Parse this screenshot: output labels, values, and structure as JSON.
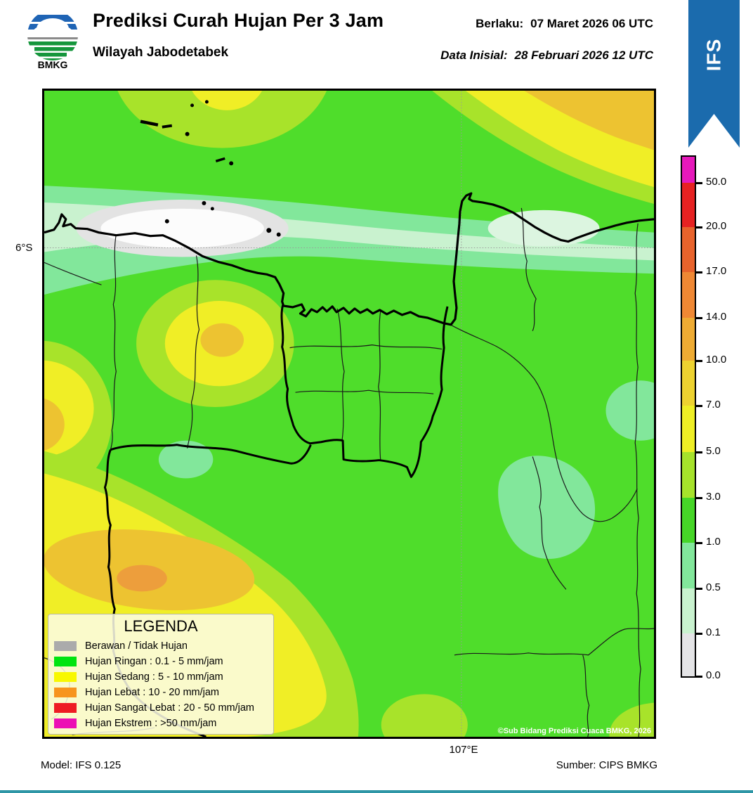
{
  "header": {
    "title": "Prediksi Curah Hujan Per 3 Jam",
    "subtitle": "Wilayah Jabodetabek",
    "valid_label": "Berlaku:",
    "valid_value": "07 Maret 2026 06 UTC",
    "init_label": "Data Inisial:",
    "init_value": "28 Februari 2026 12 UTC",
    "logo_text": "BMKG"
  },
  "banner": {
    "label": "IFS",
    "color": "#1B6BAD"
  },
  "map": {
    "lat_label": "6°S",
    "lon_label": "107°E",
    "copyright": "©Sub Bidang Prediksi Cuaca BMKG, 2026"
  },
  "legend": {
    "title": "LEGENDA",
    "items": [
      {
        "color": "#ABABAB",
        "label": "Berawan / Tidak Hujan"
      },
      {
        "color": "#00E410",
        "label": "Hujan Ringan : 0.1 - 5 mm/jam"
      },
      {
        "color": "#F8F800",
        "label": "Hujan Sedang : 5 - 10 mm/jam"
      },
      {
        "color": "#F7941E",
        "label": "Hujan Lebat : 10 - 20 mm/jam"
      },
      {
        "color": "#EE1C23",
        "label": "Hujan Sangat Lebat : 20 - 50 mm/jam"
      },
      {
        "color": "#EC0EB4",
        "label": "Hujan Ekstrem : >50 mm/jam"
      }
    ]
  },
  "colorbar": {
    "values": [
      "50.0",
      "20.0",
      "17.0",
      "14.0",
      "10.0",
      "7.0",
      "5.0",
      "3.0",
      "1.0",
      "0.5",
      "0.1",
      "0.0"
    ],
    "colors": [
      "#E619BB",
      "#E62222",
      "#E8632C",
      "#EF8834",
      "#EEAB33",
      "#EDD230",
      "#EEEE25",
      "#A6E22B",
      "#46D627",
      "#82E79B",
      "#C9F2CF",
      "#E4E4E6"
    ]
  },
  "footer": {
    "model": "Model: IFS 0.125",
    "source": "Sumber: CIPS BMKG"
  },
  "colors": {
    "map_base_green": "#4FDD2B",
    "yellow_green": "#A8E32A",
    "yellow": "#F0EE26",
    "dark_yellow": "#EDC331",
    "orange": "#ED9E3C",
    "mint": "#82E79B",
    "pale_green": "#C9F2CF",
    "cloud_gray": "#E3E3E3",
    "banner_blue": "#1B6BAD",
    "bottom_bar": "#2E96A6"
  }
}
